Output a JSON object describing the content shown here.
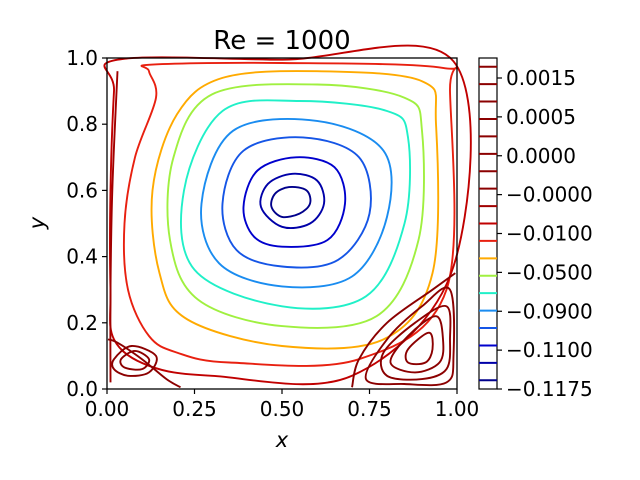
{
  "chart_data": {
    "type": "contour",
    "title": "Re = 1000",
    "xlabel": "x",
    "ylabel": "y",
    "xlim": [
      0.0,
      1.0
    ],
    "ylim": [
      0.0,
      1.0
    ],
    "x_ticks": [
      "0.00",
      "0.25",
      "0.50",
      "0.75",
      "1.00"
    ],
    "y_ticks": [
      "0.0",
      "0.2",
      "0.4",
      "0.6",
      "0.8",
      "1.0"
    ],
    "grid": false,
    "colorbar": {
      "placement": "right",
      "tick_labels": [
        "0.0015",
        "0.0005",
        "0.0000",
        "−0.0000",
        "−0.0100",
        "−0.0500",
        "−0.0900",
        "−0.1100",
        "−0.1175"
      ],
      "levels": [
        {
          "value": -0.1175,
          "color": "#00008b"
        },
        {
          "value": -0.115,
          "color": "#0000a8"
        },
        {
          "value": -0.11,
          "color": "#0000cd"
        },
        {
          "value": -0.1,
          "color": "#1555e6"
        },
        {
          "value": -0.09,
          "color": "#1a8cf0"
        },
        {
          "value": -0.07,
          "color": "#20f0c8"
        },
        {
          "value": -0.05,
          "color": "#a0f040"
        },
        {
          "value": -0.03,
          "color": "#ffaa00"
        },
        {
          "value": -0.01,
          "color": "#e82010"
        },
        {
          "value": -0.003,
          "color": "#c00000"
        },
        {
          "value": -0.0003,
          "color": "#a00000"
        },
        {
          "value": -0.0001,
          "color": "#8b0000"
        },
        {
          "value": 0.0,
          "color": "#8b0000"
        },
        {
          "value": 0.0001,
          "color": "#8b0000"
        },
        {
          "value": 0.0003,
          "color": "#8b0000"
        },
        {
          "value": 0.0005,
          "color": "#8b0000"
        },
        {
          "value": 0.001,
          "color": "#8b0000"
        },
        {
          "value": 0.0015,
          "color": "#8b0000"
        },
        {
          "value": 0.002,
          "color": "#8b0000"
        }
      ]
    },
    "contours": [
      {
        "level": -0.1175,
        "color": "#00008b",
        "points": [
          [
            0.5,
            0.52
          ],
          [
            0.55,
            0.53
          ],
          [
            0.58,
            0.56
          ],
          [
            0.57,
            0.6
          ],
          [
            0.52,
            0.61
          ],
          [
            0.48,
            0.59
          ],
          [
            0.47,
            0.55
          ]
        ]
      },
      {
        "level": -0.115,
        "color": "#0000a8",
        "points": [
          [
            0.5,
            0.49
          ],
          [
            0.58,
            0.5
          ],
          [
            0.62,
            0.56
          ],
          [
            0.6,
            0.63
          ],
          [
            0.53,
            0.65
          ],
          [
            0.46,
            0.62
          ],
          [
            0.44,
            0.55
          ]
        ]
      },
      {
        "level": -0.11,
        "color": "#0000cd",
        "points": [
          [
            0.5,
            0.43
          ],
          [
            0.63,
            0.45
          ],
          [
            0.68,
            0.56
          ],
          [
            0.65,
            0.67
          ],
          [
            0.54,
            0.7
          ],
          [
            0.43,
            0.66
          ],
          [
            0.39,
            0.55
          ],
          [
            0.42,
            0.46
          ]
        ]
      },
      {
        "level": -0.1,
        "color": "#1555e6",
        "points": [
          [
            0.5,
            0.37
          ],
          [
            0.66,
            0.39
          ],
          [
            0.75,
            0.53
          ],
          [
            0.72,
            0.7
          ],
          [
            0.56,
            0.76
          ],
          [
            0.39,
            0.72
          ],
          [
            0.33,
            0.56
          ],
          [
            0.37,
            0.42
          ]
        ]
      },
      {
        "level": -0.09,
        "color": "#1a8cf0",
        "points": [
          [
            0.5,
            0.31
          ],
          [
            0.7,
            0.34
          ],
          [
            0.8,
            0.52
          ],
          [
            0.79,
            0.72
          ],
          [
            0.6,
            0.81
          ],
          [
            0.36,
            0.78
          ],
          [
            0.27,
            0.56
          ],
          [
            0.32,
            0.38
          ]
        ]
      },
      {
        "level": -0.07,
        "color": "#20f0c8",
        "points": [
          [
            0.5,
            0.25
          ],
          [
            0.74,
            0.28
          ],
          [
            0.85,
            0.5
          ],
          [
            0.86,
            0.76
          ],
          [
            0.8,
            0.84
          ],
          [
            0.55,
            0.87
          ],
          [
            0.33,
            0.84
          ],
          [
            0.22,
            0.6
          ],
          [
            0.25,
            0.36
          ]
        ]
      },
      {
        "level": -0.05,
        "color": "#a0f040",
        "points": [
          [
            0.5,
            0.19
          ],
          [
            0.77,
            0.22
          ],
          [
            0.89,
            0.45
          ],
          [
            0.9,
            0.78
          ],
          [
            0.85,
            0.88
          ],
          [
            0.6,
            0.92
          ],
          [
            0.3,
            0.89
          ],
          [
            0.19,
            0.7
          ],
          [
            0.18,
            0.45
          ],
          [
            0.26,
            0.27
          ]
        ]
      },
      {
        "level": -0.03,
        "color": "#ffaa00",
        "points": [
          [
            0.5,
            0.13
          ],
          [
            0.79,
            0.15
          ],
          [
            0.93,
            0.35
          ],
          [
            0.94,
            0.8
          ],
          [
            0.9,
            0.93
          ],
          [
            0.6,
            0.96
          ],
          [
            0.33,
            0.94
          ],
          [
            0.2,
            0.83
          ],
          [
            0.13,
            0.6
          ],
          [
            0.15,
            0.35
          ],
          [
            0.23,
            0.21
          ]
        ]
      },
      {
        "level": -0.01,
        "color": "#e82010",
        "points": [
          [
            0.35,
            0.08
          ],
          [
            0.72,
            0.09
          ],
          [
            0.97,
            0.3
          ],
          [
            0.98,
            0.9
          ],
          [
            0.96,
            0.97
          ],
          [
            0.5,
            0.985
          ],
          [
            0.13,
            0.98
          ],
          [
            0.12,
            0.96
          ],
          [
            0.14,
            0.88
          ],
          [
            0.08,
            0.7
          ],
          [
            0.05,
            0.5
          ],
          [
            0.06,
            0.3
          ],
          [
            0.12,
            0.16
          ],
          [
            0.2,
            0.11
          ]
        ]
      },
      {
        "level": -0.003,
        "color": "#c00000",
        "points": [
          [
            0.3,
            0.04
          ],
          [
            0.7,
            0.04
          ],
          [
            0.99,
            0.37
          ],
          [
            0.99,
            0.99
          ],
          [
            0.5,
            0.995
          ],
          [
            0.03,
            0.995
          ],
          [
            0.02,
            0.9
          ],
          [
            0.01,
            0.6
          ],
          [
            0.01,
            0.3
          ],
          [
            0.02,
            0.15
          ],
          [
            0.12,
            0.07
          ]
        ]
      },
      {
        "level": -0.0003,
        "color": "#a00000",
        "points": [
          [
            0.03,
            0.96
          ],
          [
            0.015,
            0.6
          ],
          [
            0.01,
            0.3
          ],
          [
            0.01,
            0.02
          ]
        ],
        "open": true
      },
      {
        "level": -0.0001,
        "color": "#8b0000",
        "points": [
          [
            0.21,
            0.005
          ],
          [
            0.17,
            0.03
          ],
          [
            0.1,
            0.09
          ],
          [
            0.03,
            0.14
          ],
          [
            0.003,
            0.15
          ]
        ],
        "open": true
      },
      {
        "level": 0.0,
        "color": "#8b0000",
        "points": [
          [
            0.995,
            0.35
          ],
          [
            0.93,
            0.3
          ],
          [
            0.8,
            0.2
          ],
          [
            0.72,
            0.09
          ],
          [
            0.7,
            0.005
          ]
        ],
        "open": true
      },
      {
        "level": 0.0001,
        "color": "#8b0000",
        "points": [
          [
            0.02,
            0.09
          ],
          [
            0.07,
            0.13
          ],
          [
            0.14,
            0.1
          ],
          [
            0.12,
            0.05
          ],
          [
            0.06,
            0.04
          ],
          [
            0.02,
            0.06
          ]
        ]
      },
      {
        "level": 0.0003,
        "color": "#8b0000",
        "points": [
          [
            0.04,
            0.09
          ],
          [
            0.08,
            0.115
          ],
          [
            0.12,
            0.09
          ],
          [
            0.1,
            0.06
          ],
          [
            0.05,
            0.065
          ]
        ]
      },
      {
        "level": 0.0005,
        "color": "#8b0000",
        "points": [
          [
            0.98,
            0.3
          ],
          [
            0.9,
            0.25
          ],
          [
            0.8,
            0.15
          ],
          [
            0.74,
            0.03
          ],
          [
            0.85,
            0.015
          ],
          [
            0.97,
            0.02
          ],
          [
            0.99,
            0.1
          ]
        ]
      },
      {
        "level": 0.001,
        "color": "#8b0000",
        "points": [
          [
            0.97,
            0.25
          ],
          [
            0.88,
            0.2
          ],
          [
            0.79,
            0.11
          ],
          [
            0.8,
            0.04
          ],
          [
            0.9,
            0.03
          ],
          [
            0.97,
            0.06
          ],
          [
            0.98,
            0.15
          ]
        ]
      },
      {
        "level": 0.0015,
        "color": "#8b0000",
        "points": [
          [
            0.94,
            0.22
          ],
          [
            0.86,
            0.16
          ],
          [
            0.81,
            0.08
          ],
          [
            0.88,
            0.05
          ],
          [
            0.95,
            0.08
          ],
          [
            0.96,
            0.15
          ]
        ]
      },
      {
        "level": 0.002,
        "color": "#8b0000",
        "points": [
          [
            0.92,
            0.17
          ],
          [
            0.86,
            0.12
          ],
          [
            0.86,
            0.08
          ],
          [
            0.91,
            0.08
          ],
          [
            0.93,
            0.12
          ]
        ]
      }
    ]
  }
}
